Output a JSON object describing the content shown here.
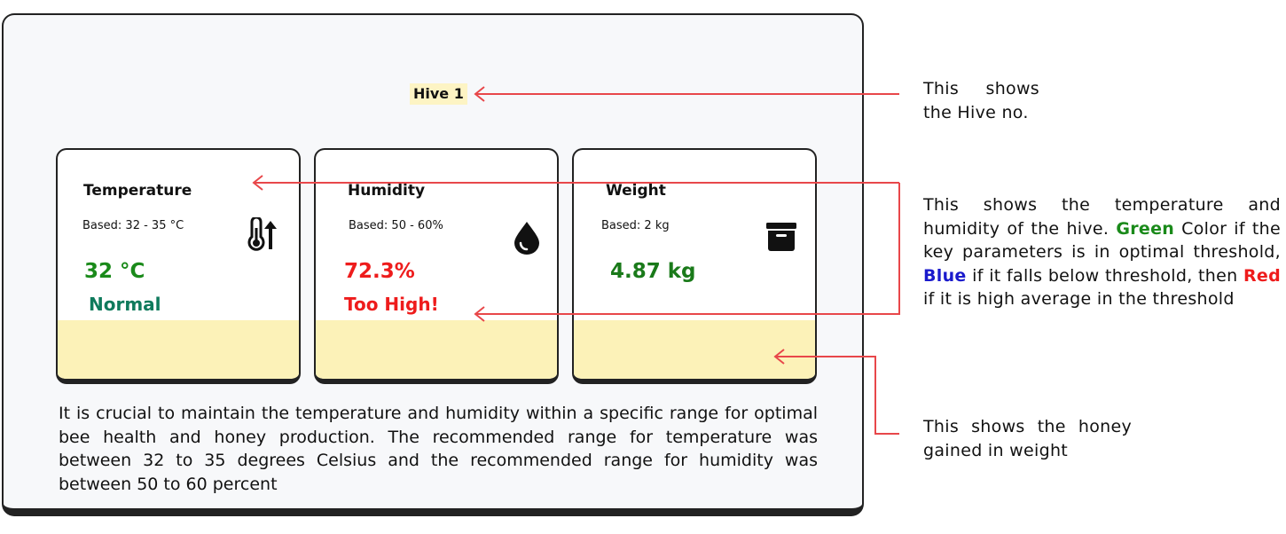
{
  "hive": {
    "title": "Hive 1"
  },
  "cards": [
    {
      "title": "Temperature",
      "based": "Based: 32 - 35 °C",
      "value": "32 °C",
      "status": "Normal",
      "icon": "thermometer-up-icon",
      "value_color": "#1a8a1a",
      "status_color": "#0f7a5c"
    },
    {
      "title": "Humidity",
      "based": "Based: 50 - 60%",
      "value": "72.3%",
      "status": "Too High!",
      "icon": "water-drop-icon",
      "value_color": "#ee1c1c",
      "status_color": "#ee1c1c"
    },
    {
      "title": "Weight",
      "based": "Based: 2 kg",
      "value": "4.87 kg",
      "status": "",
      "icon": "archive-box-icon",
      "value_color": "#1a7a1a"
    }
  ],
  "description": "It is crucial to maintain the temperature and humidity within a specific range for optimal bee health and honey production. The recommended range for temperature was between 32 to 35 degrees Celsius and the recommended range for humidity was between 50 to 60 percent",
  "annotations": {
    "hive_no": "This shows the Hive no.",
    "temp_humidity": {
      "intro": "This shows the temperature and humidity of the hive.",
      "green_word": "Green",
      "text1": "Color if the key parameters is in optimal threshold,",
      "blue_word": "Blue",
      "text2": "if it falls below threshold, then",
      "red_word": "Red",
      "text3": "if it is high average in the threshold"
    },
    "weight": "This shows the honey gained in weight"
  },
  "colors": {
    "arrow": "#e8474a",
    "green": "#1a8a1a",
    "blue": "#1a1acc",
    "red": "#ee1c1c",
    "card_fill": "#fcf2b8"
  }
}
